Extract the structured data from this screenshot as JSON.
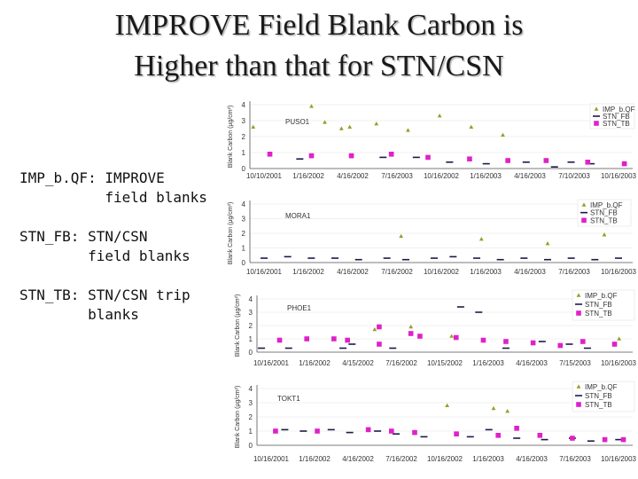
{
  "slide": {
    "title_line1": "IMPROVE Field Blank Carbon is",
    "title_line2": "Higher  than that for STN/CSN",
    "legend_lines": [
      "IMP_b.QF: IMPROVE",
      "          field blanks",
      "STN_FB: STN/CSN",
      "        field blanks",
      "STN_TB: STN/CSN trip",
      "        blanks"
    ]
  },
  "chart_data": [
    {
      "type": "scatter",
      "site": "PUSO1",
      "ylabel": "Blank Carbon (µg/cm²)",
      "ylim": [
        0,
        4
      ],
      "yticks": [
        "0",
        "1",
        "2",
        "3",
        "4"
      ],
      "xticks": [
        "10/10/2001",
        "1/16/2002",
        "4/16/2002",
        "7/16/2003",
        "10/16/2002",
        "1/16/2003",
        "4/16/2003",
        "7/10/2003",
        "10/16/2003"
      ],
      "legend": [
        "IMP_b.QF",
        "STN_FB",
        "STN_TB"
      ],
      "colors": {
        "IMP_b.QF": "#9c9c2a",
        "STN_FB": "#1a1a4a",
        "STN_TB": "#e020c8"
      },
      "series": [
        {
          "name": "IMP_b.QF",
          "x": [
            0.02,
            0.37,
            0.45,
            0.55,
            0.6,
            0.76,
            0.95,
            1.14,
            1.33,
            1.52
          ],
          "y": [
            2.6,
            3.9,
            2.9,
            2.5,
            2.6,
            2.8,
            2.4,
            3.3,
            2.6,
            2.1
          ]
        },
        {
          "name": "STN_FB",
          "x": [
            0.3,
            0.8,
            1.0,
            1.2,
            1.42,
            1.66,
            1.83,
            1.93,
            2.05
          ],
          "y": [
            0.6,
            0.7,
            0.7,
            0.4,
            0.3,
            0.4,
            0.1,
            0.4,
            0.3
          ]
        },
        {
          "name": "STN_TB",
          "x": [
            0.12,
            0.37,
            0.61,
            0.85,
            1.07,
            1.32,
            1.55,
            1.78,
            2.03,
            2.25
          ],
          "y": [
            0.9,
            0.8,
            0.8,
            0.9,
            0.7,
            0.6,
            0.5,
            0.5,
            0.4,
            0.3
          ]
        }
      ]
    },
    {
      "type": "scatter",
      "site": "MORA1",
      "ylabel": "Blank Carbon (µg/cm²)",
      "ylim": [
        0,
        4
      ],
      "yticks": [
        "0",
        "1",
        "2",
        "3",
        "4"
      ],
      "xticks": [
        "10/16/2001",
        "1/16/2002",
        "4/16/2002",
        "7/16/2002",
        "10/16/2002",
        "1/16/2003",
        "4/16/2003",
        "7/16/2003",
        "10/16/2003"
      ],
      "legend": [
        "IMP_b.QF",
        "STN_FB",
        "STN_TB"
      ],
      "colors": {
        "IMP_b.QF": "#9c9c2a",
        "STN_FB": "#1a1a4a",
        "STN_TB": "#e020c8"
      },
      "series": [
        {
          "name": "IMP_b.QF",
          "x": [
            3.2,
            4.9,
            6.3,
            7.5
          ],
          "y": [
            1.8,
            1.6,
            1.3,
            1.9
          ]
        },
        {
          "name": "STN_FB",
          "x": [
            0.3,
            0.8,
            1.3,
            1.8,
            2.3,
            2.9,
            3.3,
            3.9,
            4.3,
            4.8,
            5.3,
            5.8,
            6.3,
            6.8,
            7.3,
            7.8
          ],
          "y": [
            0.3,
            0.4,
            0.3,
            0.3,
            0.2,
            0.3,
            0.2,
            0.3,
            0.4,
            0.3,
            0.2,
            0.3,
            0.2,
            0.3,
            0.2,
            0.3
          ]
        },
        {
          "name": "STN_TB",
          "x": [],
          "y": []
        }
      ]
    },
    {
      "type": "scatter",
      "site": "PHOE1",
      "ylabel": "Blank Carbon (µg/cm²)",
      "ylim": [
        0,
        4
      ],
      "yticks": [
        "0",
        "1",
        "2",
        "3",
        "4"
      ],
      "xticks": [
        "10/16/2001",
        "1/16/2002",
        "4/15/2002",
        "7/16/2002",
        "10/15/2002",
        "1/16/2003",
        "4/16/2003",
        "7/15/2003",
        "10/16/2003"
      ],
      "legend": [
        "IMP_b.QF",
        "STN_FB",
        "STN_TB"
      ],
      "colors": {
        "IMP_b.QF": "#9c9c2a",
        "STN_FB": "#1a1a4a",
        "STN_TB": "#e020c8"
      },
      "series": [
        {
          "name": "IMP_b.QF",
          "x": [
            2.5,
            3.3,
            4.2,
            7.9
          ],
          "y": [
            1.7,
            1.9,
            1.2,
            1.0
          ]
        },
        {
          "name": "STN_FB",
          "x": [
            0.0,
            0.6,
            1.8,
            2.0,
            2.9,
            4.4,
            4.8,
            5.4,
            6.2,
            6.8,
            7.2
          ],
          "y": [
            0.3,
            0.3,
            0.3,
            0.6,
            0.3,
            3.4,
            3.0,
            0.3,
            0.8,
            0.6,
            0.3
          ]
        },
        {
          "name": "STN_TB",
          "x": [
            0.4,
            1.0,
            1.6,
            1.9,
            2.6,
            2.6,
            3.3,
            3.5,
            4.3,
            4.9,
            5.4,
            6.0,
            6.6,
            7.1,
            7.8
          ],
          "y": [
            0.9,
            1.0,
            1.0,
            0.9,
            1.9,
            0.6,
            1.4,
            1.2,
            1.1,
            0.9,
            0.8,
            0.7,
            0.5,
            0.8,
            0.6
          ]
        }
      ]
    },
    {
      "type": "scatter",
      "site": "TOKT1",
      "ylabel": "Blank Carbon (µg/cm²)",
      "ylim": [
        0,
        4
      ],
      "yticks": [
        "0",
        "1",
        "2",
        "3",
        "4"
      ],
      "xticks": [
        "10/16/2001",
        "1/16/2002",
        "4/16/2002",
        "7/16/2002",
        "10/16/2002",
        "1/16/2003",
        "4/16/2003",
        "7/16/2003",
        "10/16/2003"
      ],
      "legend": [
        "IMP_b.QF",
        "STN_FB",
        "STN_TB"
      ],
      "colors": {
        "IMP_b.QF": "#9c9c2a",
        "STN_FB": "#1a1a4a",
        "STN_TB": "#e020c8"
      },
      "series": [
        {
          "name": "IMP_b.QF",
          "x": [
            4.1,
            5.1,
            5.4,
            7.6
          ],
          "y": [
            2.8,
            2.6,
            2.4,
            2.6
          ]
        },
        {
          "name": "STN_FB",
          "x": [
            0.6,
            1.0,
            1.6,
            2.0,
            2.6,
            3.0,
            3.6,
            4.6,
            5.0,
            5.6,
            6.2,
            6.8,
            7.2,
            7.8
          ],
          "y": [
            1.1,
            1.0,
            1.1,
            0.9,
            1.0,
            0.8,
            0.6,
            0.6,
            1.1,
            0.5,
            0.4,
            0.5,
            0.3,
            0.4
          ]
        },
        {
          "name": "STN_TB",
          "x": [
            0.4,
            1.3,
            2.4,
            2.9,
            3.4,
            4.3,
            5.2,
            5.6,
            6.1,
            6.8,
            7.5,
            7.9
          ],
          "y": [
            1.0,
            1.0,
            1.1,
            1.0,
            0.9,
            0.8,
            0.7,
            1.2,
            0.7,
            0.5,
            0.4,
            0.4
          ]
        }
      ]
    }
  ]
}
